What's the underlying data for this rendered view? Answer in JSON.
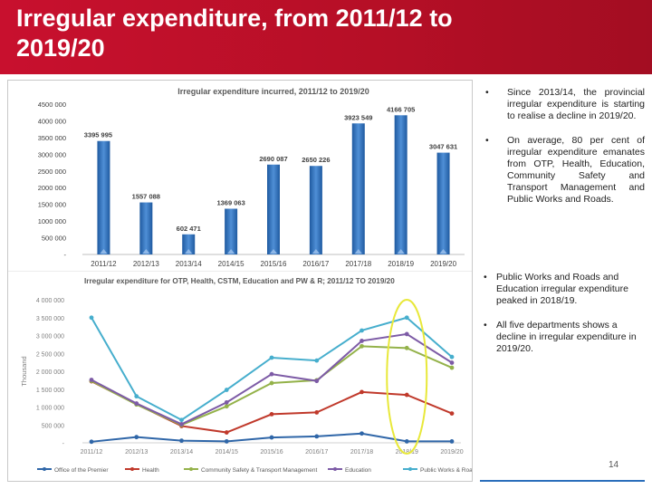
{
  "slide": {
    "title": "Irregular expenditure, from 2011/12 to 2019/20",
    "page_number": "14"
  },
  "colors": {
    "header": "#c8102e",
    "bar": "#2e6db4",
    "highlight": "#e8e83a"
  },
  "bullets_top": [
    "Since 2013/14, the provincial irregular expenditure is starting to realise a decline in 2019/20.",
    "On average, 80 per cent of irregular expenditure emanates from OTP, Health, Education, Community Safety and Transport Management and Public Works and Roads."
  ],
  "bullets_bottom": [
    "Public Works and Roads and Education irregular expenditure peaked in 2018/19.",
    "All five departments shows a decline in irregular expenditure in 2019/20."
  ],
  "chart_data": [
    {
      "type": "bar",
      "title": "Irregular expenditure incurred, 2011/12 to 2019/20",
      "categories": [
        "2011/12",
        "2012/13",
        "2013/14",
        "2014/15",
        "2015/16",
        "2016/17",
        "2017/18",
        "2018/19",
        "2019/20"
      ],
      "values": [
        3395995,
        1557088,
        602471,
        1369063,
        2690087,
        2650226,
        3923549,
        4166705,
        3047631
      ],
      "labels": [
        "3395 995",
        "1557 088",
        "602 471",
        "1369 063",
        "2690 087",
        "2650 226",
        "3923 549",
        "4166 705",
        "3047 631"
      ],
      "yticks": [
        "4500 000",
        "4000 000",
        "3500 000",
        "3000 000",
        "2500 000",
        "2000 000",
        "1500 000",
        "1000 000",
        "500 000",
        "-"
      ],
      "ylim": [
        0,
        4500000
      ],
      "xlabel": "",
      "ylabel": ""
    },
    {
      "type": "line",
      "title": "Irregular expenditure for OTP, Health, CSTM, Education and PW & R; 2011/12 TO 2019/20",
      "categories": [
        "2011/12",
        "2012/13",
        "2013/14",
        "2014/15",
        "2015/16",
        "2016/17",
        "2017/18",
        "2018/19",
        "2019/20"
      ],
      "ylabel": "Thousand",
      "yticks": [
        "4 000 000",
        "3 500 000",
        "3 000 000",
        "2 500 000",
        "2 000 000",
        "1 500 000",
        "1 000 000",
        "500 000",
        "-"
      ],
      "ylim": [
        0,
        4000000
      ],
      "series": [
        {
          "name": "Office of the Premier",
          "color": "#2f66a8",
          "values": [
            30000,
            160000,
            60000,
            40000,
            150000,
            180000,
            260000,
            40000,
            40000
          ]
        },
        {
          "name": "Health",
          "color": "#c0392b",
          "values": [
            1720000,
            1080000,
            470000,
            290000,
            800000,
            850000,
            1420000,
            1340000,
            820000
          ]
        },
        {
          "name": "Community Safety & Transport Management",
          "color": "#94b24a",
          "values": [
            1730000,
            1070000,
            500000,
            1020000,
            1670000,
            1750000,
            2700000,
            2650000,
            2100000
          ]
        },
        {
          "name": "Education",
          "color": "#7d5ba6",
          "values": [
            1760000,
            1100000,
            520000,
            1130000,
            1920000,
            1730000,
            2850000,
            3040000,
            2240000
          ]
        },
        {
          "name": "Public Works & Roads",
          "color": "#46aecd",
          "values": [
            3500000,
            1300000,
            640000,
            1480000,
            2380000,
            2300000,
            3140000,
            3500000,
            2400000
          ]
        }
      ],
      "legend_position": "bottom"
    }
  ]
}
